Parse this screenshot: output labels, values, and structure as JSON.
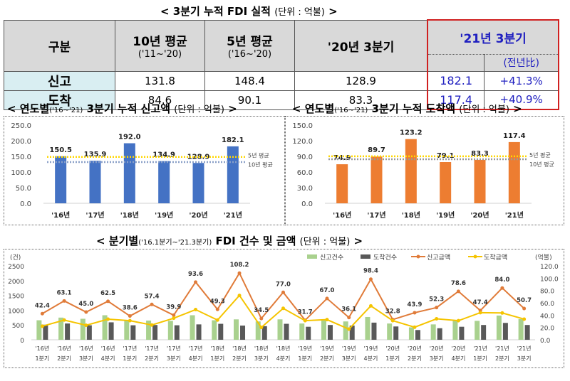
{
  "title": {
    "main": "< 3분기 누적 FDI 실적",
    "unit": "(단위 : 억불)",
    "end": ">"
  },
  "table": {
    "headers": {
      "category": "구분",
      "avg10": "10년 평균",
      "avg10_sub": "('11~'20)",
      "avg5": "5년 평균",
      "avg5_sub": "('16~'20)",
      "prev": "'20년 3분기",
      "cur": "'21년 3분기",
      "yoy": "(전년比)"
    },
    "rows": [
      {
        "label": "신고",
        "avg10": "131.8",
        "avg5": "148.4",
        "prev": "128.9",
        "cur": "182.1",
        "yoy": "+41.3%"
      },
      {
        "label": "도착",
        "avg10": "84.6",
        "avg5": "90.1",
        "prev": "83.3",
        "cur": "117.4",
        "yoy": "+40.9%"
      }
    ]
  },
  "chart1_title": {
    "main": "< 연도별",
    "period": "('16~'21)",
    "rest": "3분기 누적 신고액",
    "unit": "(단위 : 억불)",
    "end": ">"
  },
  "chart2_title": {
    "main": "< 연도별",
    "period": "('16~'21)",
    "rest": "3분기 누적 도착액",
    "unit": "(단위 : 억불)",
    "end": ">"
  },
  "chart3_title": {
    "main": "< 분기별",
    "period": "('16.1분기~'21.3분기)",
    "rest": "FDI 건수 및 금액",
    "unit": "(단위 : 억불)",
    "end": ">"
  },
  "chart_data": [
    {
      "type": "bar",
      "title": "연도별 3분기 누적 신고액",
      "categories": [
        "'16년",
        "'17년",
        "'18년",
        "'19년",
        "'20년",
        "'21년"
      ],
      "values": [
        150.5,
        135.9,
        192.0,
        134.9,
        128.9,
        182.1
      ],
      "ylim": [
        0,
        250
      ],
      "yticks": [
        "0.0",
        "50.0",
        "100.0",
        "150.0",
        "200.0",
        "250.0"
      ],
      "color": "#4472c4",
      "ref_lines": [
        {
          "name": "5년 평균",
          "value": 148.4,
          "color": "#ffd700"
        },
        {
          "name": "10년 평균",
          "value": 131.8,
          "color": "#8aa0c8"
        }
      ]
    },
    {
      "type": "bar",
      "title": "연도별 3분기 누적 도착액",
      "categories": [
        "'16년",
        "'17년",
        "'18년",
        "'19년",
        "'20년",
        "'21년"
      ],
      "values": [
        74.9,
        89.7,
        123.2,
        79.1,
        83.3,
        117.4
      ],
      "ylim": [
        0,
        150
      ],
      "yticks": [
        "0.0",
        "30.0",
        "60.0",
        "90.0",
        "120.0",
        "150.0"
      ],
      "color": "#ed7d31",
      "ref_lines": [
        {
          "name": "5년 평균",
          "value": 90.1,
          "color": "#ffd700"
        },
        {
          "name": "10년 평균",
          "value": 84.6,
          "color": "#999999"
        }
      ]
    },
    {
      "type": "bar+line",
      "title": "분기별 FDI 건수 및 금액",
      "categories": [
        [
          "'16년",
          "1분기"
        ],
        [
          "'16년",
          "2분기"
        ],
        [
          "'16년",
          "3분기"
        ],
        [
          "'16년",
          "4분기"
        ],
        [
          "'17년",
          "1분기"
        ],
        [
          "'17년",
          "2분기"
        ],
        [
          "'17년",
          "3분기"
        ],
        [
          "'17년",
          "4분기"
        ],
        [
          "'18년",
          "1분기"
        ],
        [
          "'18년",
          "2분기"
        ],
        [
          "'18년",
          "3분기"
        ],
        [
          "'18년",
          "4분기"
        ],
        [
          "'19년",
          "1분기"
        ],
        [
          "'19년",
          "2분기"
        ],
        [
          "'19년",
          "3분기"
        ],
        [
          "'19년",
          "4분기"
        ],
        [
          "'20년",
          "1분기"
        ],
        [
          "'20년",
          "2분기"
        ],
        [
          "'20년",
          "3분기"
        ],
        [
          "'20년",
          "4분기"
        ],
        [
          "'21년",
          "1분기"
        ],
        [
          "'21년",
          "2분기"
        ],
        [
          "'21년",
          "3분기"
        ]
      ],
      "left_unit": "(건)",
      "right_unit": "(억불)",
      "ylim_left": [
        0,
        2500
      ],
      "ylim_right": [
        0,
        120
      ],
      "yticks_left": [
        "0",
        "500",
        "1000",
        "1500",
        "2000",
        "2500"
      ],
      "yticks_right": [
        "0.0",
        "20.0",
        "40.0",
        "60.0",
        "80.0",
        "100.0",
        "120.0"
      ],
      "series": [
        {
          "name": "신고건수",
          "axis": "left",
          "kind": "bar",
          "color": "#a9d18e",
          "values": [
            660,
            750,
            710,
            830,
            650,
            650,
            640,
            830,
            660,
            690,
            620,
            690,
            550,
            690,
            620,
            770,
            550,
            420,
            520,
            670,
            640,
            820,
            700
          ]
        },
        {
          "name": "도착건수",
          "axis": "left",
          "kind": "bar",
          "color": "#595959",
          "values": [
            510,
            550,
            490,
            590,
            490,
            500,
            490,
            520,
            540,
            480,
            460,
            540,
            440,
            500,
            480,
            580,
            450,
            330,
            390,
            440,
            500,
            570,
            500
          ]
        },
        {
          "name": "신고금액",
          "axis": "right",
          "kind": "line",
          "color": "#e07b39",
          "values": [
            42.4,
            63.1,
            45.0,
            62.5,
            38.6,
            57.4,
            39.9,
            93.6,
            49.3,
            108.2,
            34.5,
            77.0,
            31.7,
            67.0,
            36.1,
            98.4,
            32.8,
            43.9,
            52.3,
            78.6,
            47.4,
            84.0,
            50.7
          ]
        },
        {
          "name": "도착금액",
          "axis": "right",
          "kind": "line",
          "color": "#f5c400",
          "values": [
            22,
            32,
            23.5,
            33.5,
            31,
            24,
            35,
            49,
            32,
            72,
            20,
            51,
            31,
            32.7,
            17.3,
            55,
            31,
            20.4,
            34,
            31,
            44,
            43.5,
            33.5
          ]
        }
      ]
    }
  ]
}
